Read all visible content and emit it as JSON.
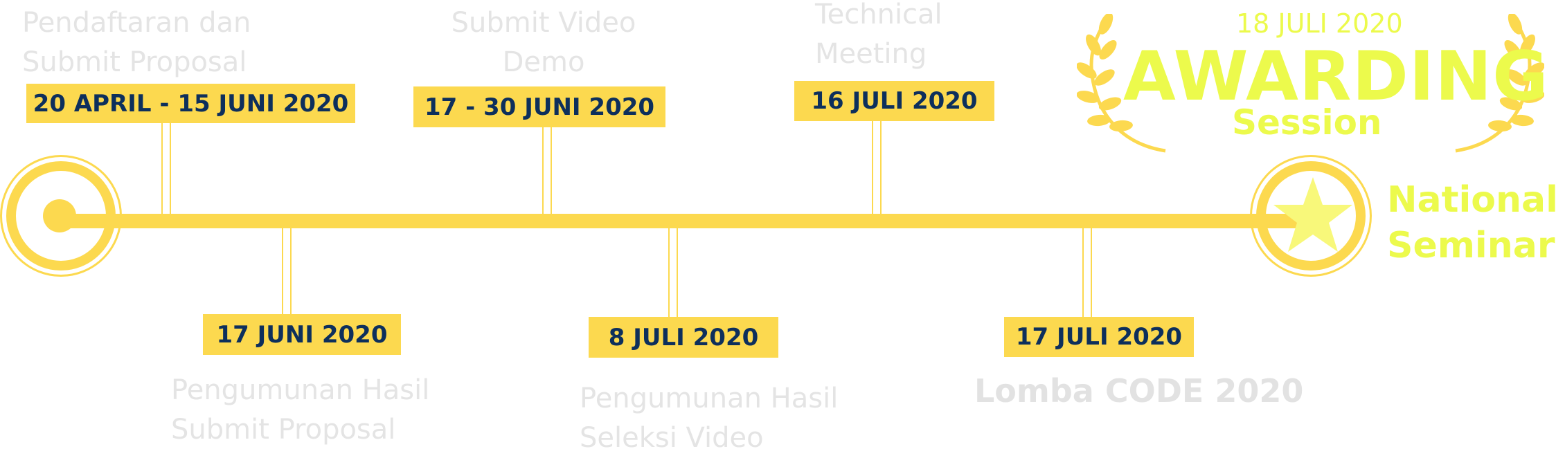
{
  "milestones": [
    {
      "date": "20 APRIL - 15 JUNI 2020",
      "line1": "Pendaftaran dan",
      "line2": "Submit Proposal"
    },
    {
      "date": "17 JUNI 2020",
      "line1": "Pengumunan Hasil",
      "line2": "Submit Proposal"
    },
    {
      "date": "17 - 30 JUNI 2020",
      "line1": "Submit Video",
      "line2": "Demo"
    },
    {
      "date": "8 JULI 2020",
      "line1": "Pengumunan Hasil",
      "line2": "Seleksi Video"
    },
    {
      "date": "16 JULI 2020",
      "line1": "Technical",
      "line2": "Meeting"
    },
    {
      "date": "17 JULI 2020",
      "line1": "Lomba CODE 2020",
      "line2": ""
    }
  ],
  "awarding": {
    "date": "18 JULI 2020",
    "title": "AWARDING",
    "subtitle": "Session"
  },
  "national": {
    "line1": "National",
    "line2": "Seminar"
  },
  "colors": {
    "accent": "#fcd94f",
    "date_text": "#0d2f5c",
    "lime": "#ecfa4c",
    "muted_text": "#e4e4e4"
  },
  "icons": {
    "start": "target-circle-icon",
    "end": "star-icon",
    "laurel": "laurel-wreath-icon"
  }
}
